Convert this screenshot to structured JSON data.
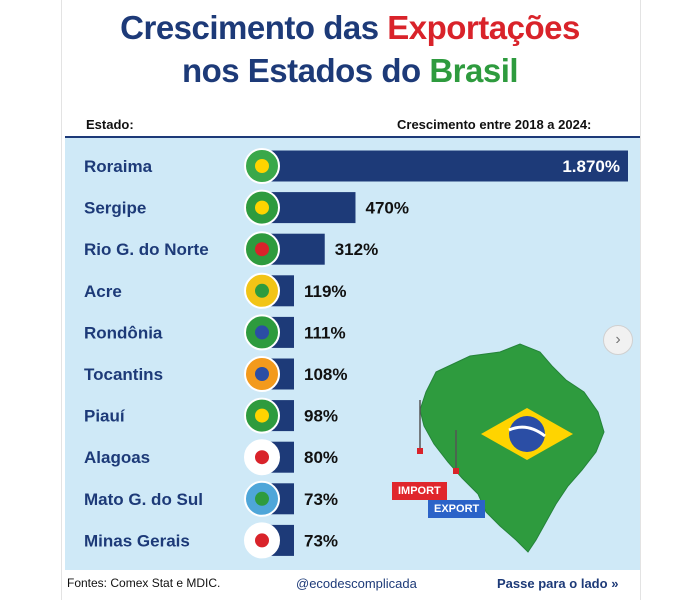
{
  "title": {
    "part1": "Crescimento das ",
    "part2": "Exportações",
    "part3": "nos Estados do ",
    "part4": "Brasil"
  },
  "headers": {
    "state": "Estado:",
    "growth": "Crescimento entre 2018 a 2024:"
  },
  "chart_data": {
    "type": "bar",
    "orientation": "horizontal",
    "categories": [
      "Roraima",
      "Sergipe",
      "Rio G. do Norte",
      "Acre",
      "Rondônia",
      "Tocantins",
      "Piauí",
      "Alagoas",
      "Mato G. do Sul",
      "Minas Gerais"
    ],
    "values": [
      1870,
      470,
      312,
      119,
      111,
      108,
      98,
      80,
      73,
      73
    ],
    "value_labels": [
      "1.870%",
      "470%",
      "312%",
      "119%",
      "111%",
      "108%",
      "98%",
      "80%",
      "73%",
      "73%"
    ],
    "unit": "%",
    "bar_color": "#1d3a78"
  },
  "map": {
    "import_label": "IMPORT",
    "export_label": "EXPORT"
  },
  "footer": {
    "sources": "Fontes: Comex Stat e MDIC.",
    "handle": "@ecodescomplicada",
    "swipe": "Passe para o lado"
  },
  "colors": {
    "navy": "#1d3a78",
    "red": "#d9232a",
    "green": "#2e9b3e",
    "panel": "#cfe9f7"
  }
}
